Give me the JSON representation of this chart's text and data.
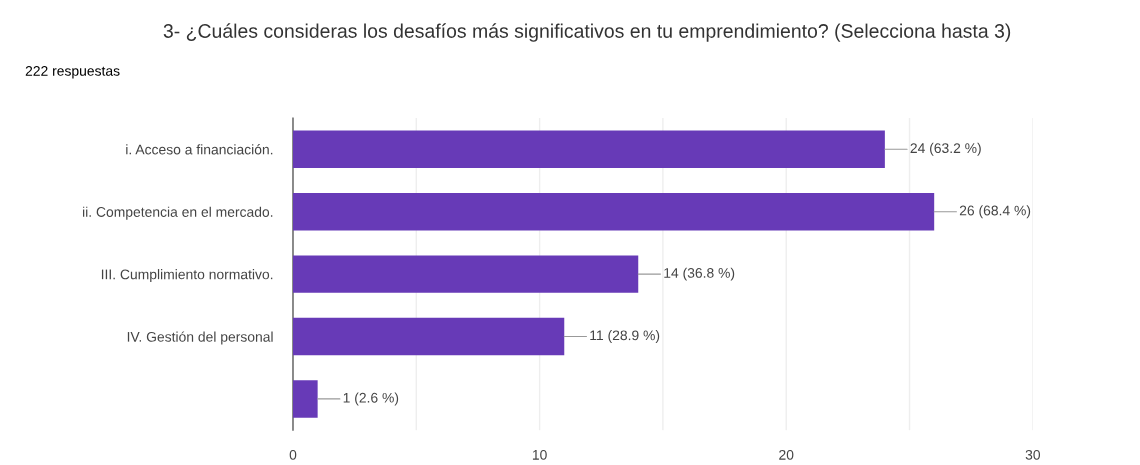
{
  "chart_data": {
    "type": "bar",
    "orientation": "horizontal",
    "title": "3- ¿Cuáles consideras los desafíos más significativos en tu emprendimiento? (Selecciona hasta 3)",
    "subtitle": "222 respuestas",
    "categories": [
      "i. Acceso a financiación.",
      "ii. Competencia en el mercado.",
      "III. Cumplimiento normativo.",
      "IV. Gestión del personal",
      null
    ],
    "values": [
      24,
      26,
      14,
      11,
      1
    ],
    "value_labels": [
      "24 (63.2 %)",
      "26 (68.4 %)",
      "14 (36.8 %)",
      "11 (28.9 %)",
      "1 (2.6 %)"
    ],
    "color": "#673ab7",
    "xlim": [
      0,
      30
    ],
    "xticks": [
      0,
      {
        "value": 5,
        "label": null
      },
      10,
      {
        "value": 15,
        "label": null
      },
      20,
      {
        "value": 25,
        "label": null
      },
      30
    ],
    "grid": "x",
    "legend": false
  }
}
